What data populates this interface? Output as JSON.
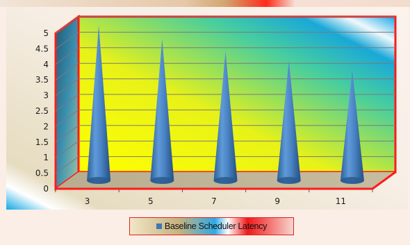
{
  "chart_data": {
    "type": "bar",
    "style": "3d-cone",
    "categories": [
      "3",
      "5",
      "7",
      "9",
      "11"
    ],
    "series": [
      {
        "name": "Baseline Scheduler Latency",
        "values": [
          5.0,
          4.55,
          4.15,
          3.85,
          3.55
        ],
        "color": "#3e77b8"
      }
    ],
    "title": "",
    "xlabel": "",
    "ylabel": "",
    "ylim": [
      0,
      5
    ],
    "yticks": [
      "0",
      "0.5",
      "1",
      "1.5",
      "2",
      "2.5",
      "3",
      "3.5",
      "4",
      "4.5",
      "5"
    ],
    "grid": true,
    "legend": {
      "position": "bottom"
    },
    "colors": {
      "frame": "#ff1a1a",
      "gridline": "#7a7a7a",
      "floor": "#b9ae8f"
    }
  }
}
